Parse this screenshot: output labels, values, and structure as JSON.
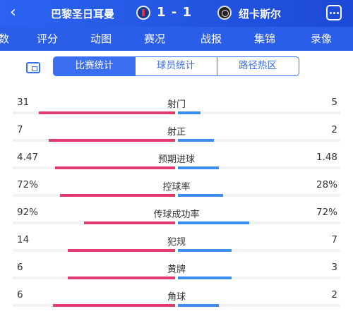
{
  "header": {
    "back_icon": "back-arrow-icon",
    "home_team": "巴黎圣日耳曼",
    "score": "1 - 1",
    "away_team": "纽卡斯尔",
    "more_icon": "more-icon"
  },
  "tabs": [
    {
      "label": "数"
    },
    {
      "label": "评分"
    },
    {
      "label": "动图"
    },
    {
      "label": "赛况"
    },
    {
      "label": "战报"
    },
    {
      "label": "集锦"
    },
    {
      "label": "录像"
    }
  ],
  "subnav": {
    "icon": "share-image-icon",
    "segments": [
      "比赛统计",
      "球员统计",
      "路径热区"
    ],
    "selected": "比赛统计"
  },
  "stats": [
    {
      "label": "射门",
      "home": "31",
      "away": "5",
      "home_share": 0.84,
      "away_share": 0.14
    },
    {
      "label": "射正",
      "home": "7",
      "away": "2",
      "home_share": 0.78,
      "away_share": 0.22
    },
    {
      "label": "预期进球",
      "home": "4.47",
      "away": "1.48",
      "home_share": 0.74,
      "away_share": 0.25
    },
    {
      "label": "控球率",
      "home": "72%",
      "away": "28%",
      "home_share": 0.71,
      "away_share": 0.28
    },
    {
      "label": "传球成功率",
      "home": "92%",
      "away": "72%",
      "home_share": 0.56,
      "away_share": 0.44
    },
    {
      "label": "犯规",
      "home": "14",
      "away": "7",
      "home_share": 0.66,
      "away_share": 0.33
    },
    {
      "label": "黄牌",
      "home": "6",
      "away": "3",
      "home_share": 0.66,
      "away_share": 0.33
    },
    {
      "label": "角球",
      "home": "6",
      "away": "2",
      "home_share": 0.75,
      "away_share": 0.25
    }
  ],
  "colors": {
    "header": "#2a5ee8",
    "home_bar": "#e23a6e",
    "away_bar": "#3a8ef0"
  }
}
